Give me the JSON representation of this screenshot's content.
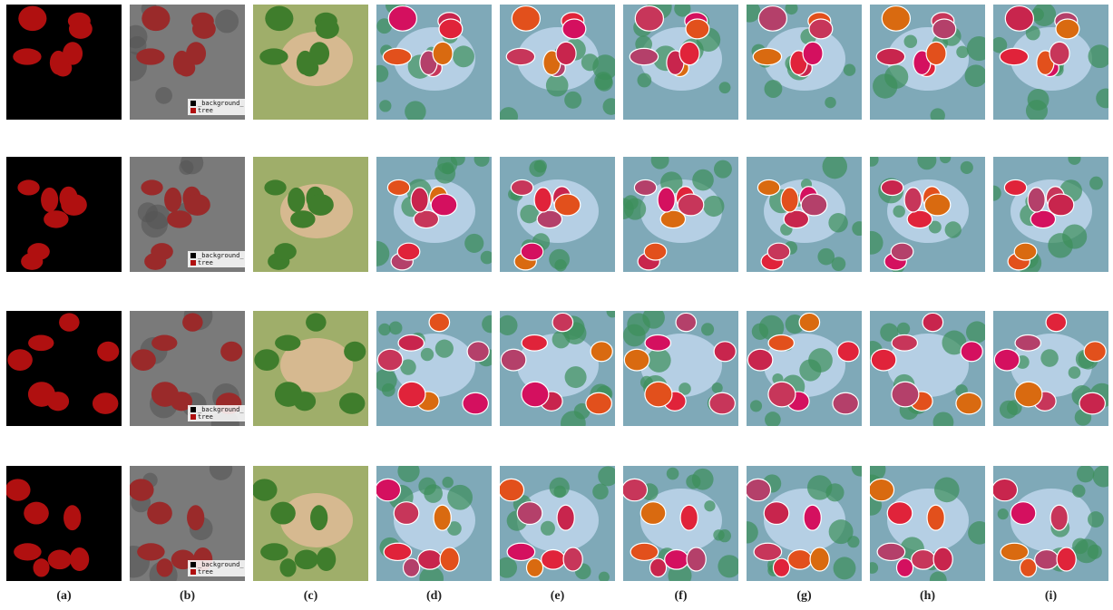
{
  "figure": {
    "columns": [
      "(a)",
      "(b)",
      "(c)",
      "(d)",
      "(e)",
      "(f)",
      "(g)",
      "(h)",
      "(i)"
    ],
    "legend": [
      "_background_",
      "tree"
    ]
  }
}
